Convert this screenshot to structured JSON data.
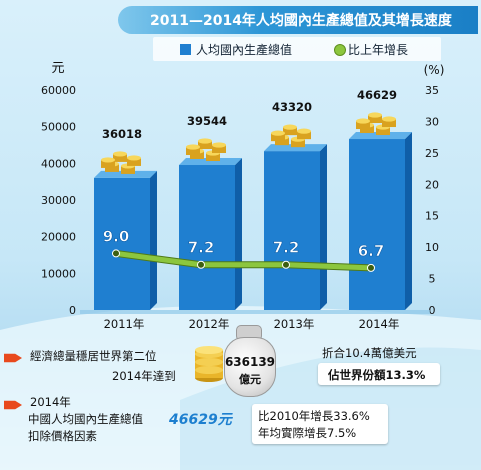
{
  "chart_data": {
    "type": "bar",
    "title": "2011—2014年人均國內生產總值及其增長速度",
    "categories": [
      "2011年",
      "2012年",
      "2013年",
      "2014年"
    ],
    "series": [
      {
        "name": "人均國內生產總值",
        "type": "bar",
        "axis": "left",
        "values": [
          36018,
          39544,
          43320,
          46629
        ],
        "color": "#1f7fd0"
      },
      {
        "name": "比上年增長",
        "type": "line",
        "axis": "right",
        "values": [
          9.0,
          7.2,
          7.2,
          6.7
        ],
        "color": "#8cc63e"
      }
    ],
    "bar_labels": [
      "36018",
      "39544",
      "43320",
      "46629"
    ],
    "line_labels": [
      "9.0",
      "7.2",
      "7.2",
      "6.7"
    ],
    "y_left": {
      "unit": "元",
      "ylim": [
        0,
        60000
      ],
      "ticks": [
        "0",
        "10000",
        "20000",
        "30000",
        "40000",
        "50000",
        "60000"
      ]
    },
    "y_right": {
      "unit": "(%)",
      "ylim": [
        0,
        35
      ],
      "ticks": [
        "0",
        "5",
        "10",
        "15",
        "20",
        "25",
        "30",
        "35"
      ]
    },
    "grid": false,
    "legend_position": "top"
  },
  "notes": {
    "rank_line1": "經濟總量穩居世界第二位",
    "rank_line2": "2014年達到",
    "gdp_value": "636139",
    "gdp_unit": "億元",
    "usd_line": "折合10.4萬億美元",
    "share_line": "佔世界份額13.3%",
    "year_label": "2014年",
    "per_capita_line1": "中國人均國內生產總值",
    "per_capita_value": "46629元",
    "per_capita_line2": "扣除價格因素",
    "growth_line1": "比2010年增長33.6%",
    "growth_line2": "年均實際增長7.5%"
  },
  "colors": {
    "bar": "#1f7fd0",
    "line": "#8cc63e",
    "accent": "#e8491d",
    "title_bar": "#1a7fc6"
  }
}
